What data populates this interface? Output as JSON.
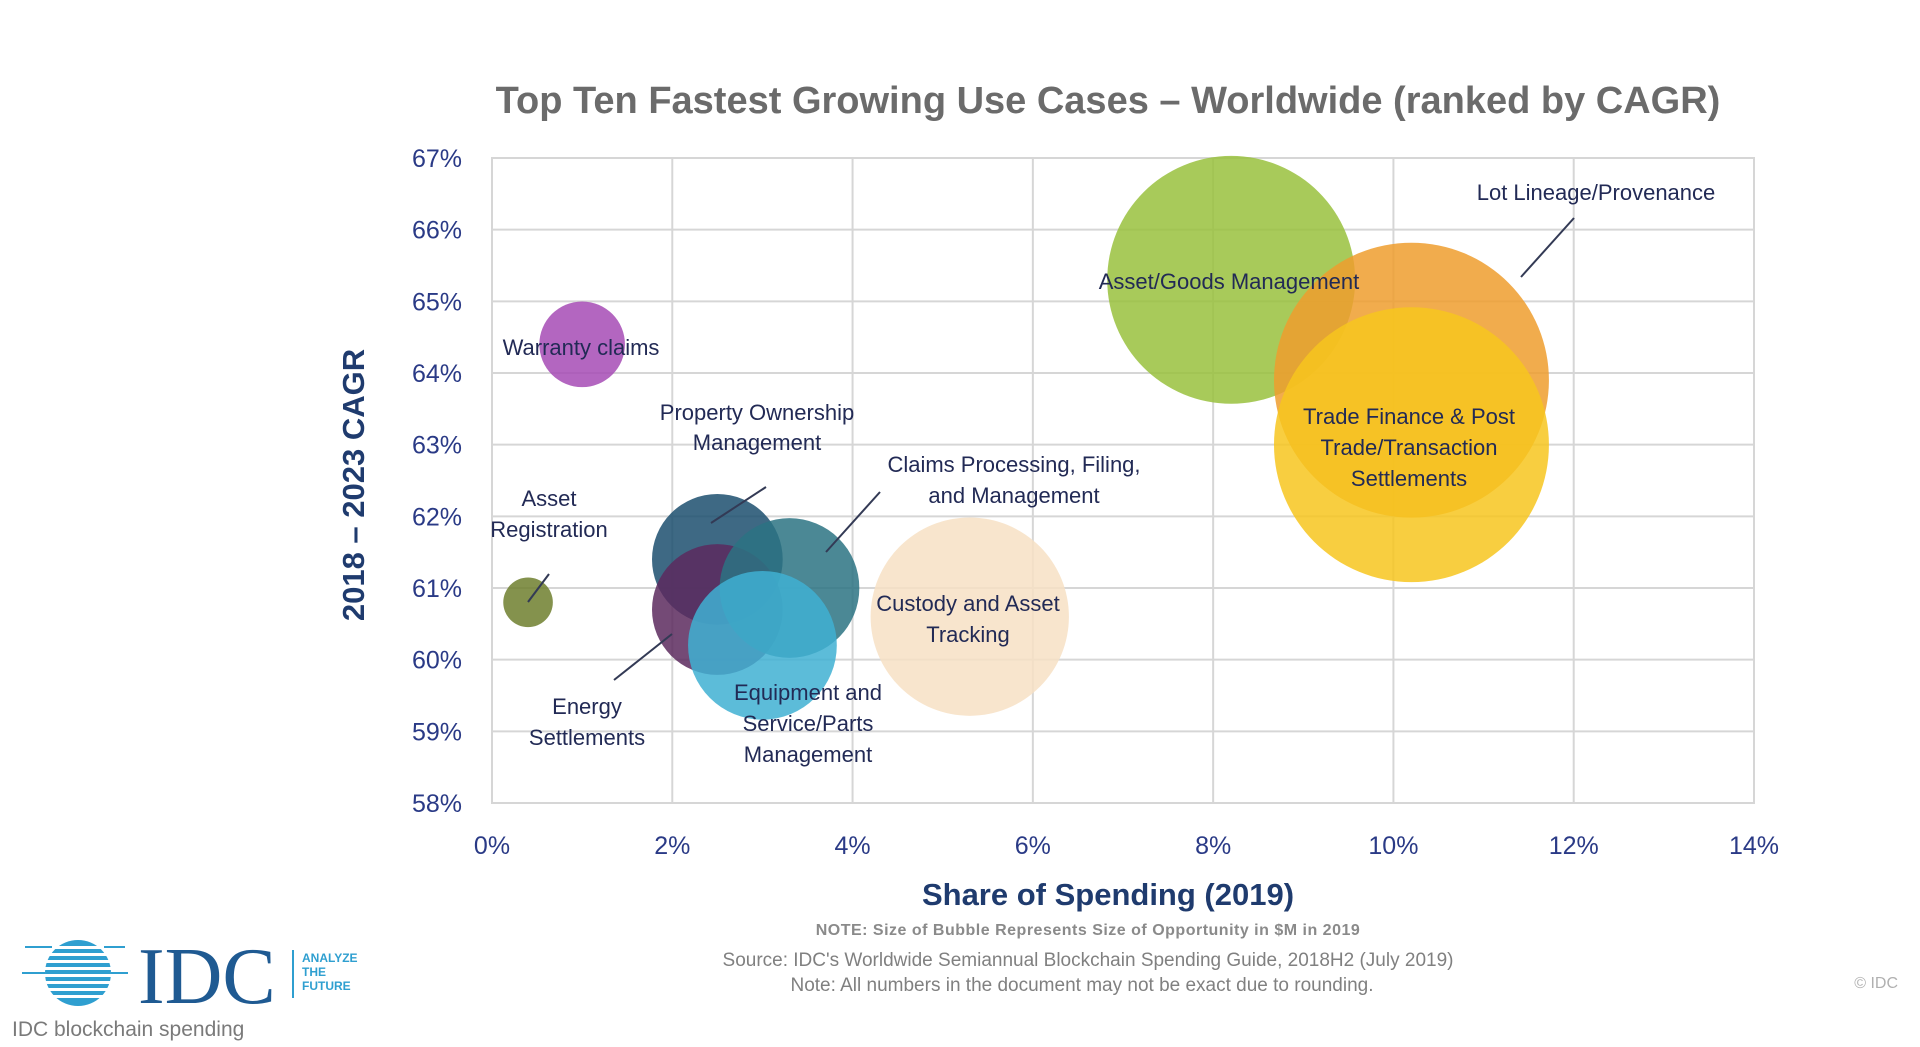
{
  "chart_data": {
    "type": "scatter",
    "subtype": "bubble",
    "title": "Top Ten Fastest Growing Use Cases – Worldwide (ranked by CAGR)",
    "xlabel": "Share of Spending (2019)",
    "ylabel": "2018 – 2023 CAGR",
    "xlim": [
      0,
      14
    ],
    "ylim": [
      58,
      67
    ],
    "x_ticks": [
      "0%",
      "2%",
      "4%",
      "6%",
      "8%",
      "10%",
      "12%",
      "14%"
    ],
    "y_ticks": [
      "58%",
      "59%",
      "60%",
      "61%",
      "62%",
      "63%",
      "64%",
      "65%",
      "66%",
      "67%"
    ],
    "grid": true,
    "series": [
      {
        "name": "Warranty claims",
        "lines": [
          "Warranty claims"
        ],
        "x": 1.0,
        "y": 64.4,
        "size": 0.95,
        "color": "#a64bb5"
      },
      {
        "name": "Asset Registration",
        "lines": [
          "Asset",
          "Registration"
        ],
        "x": 0.4,
        "y": 60.8,
        "size": 0.55,
        "color": "#6f7f2e"
      },
      {
        "name": "Property Ownership Management",
        "lines": [
          "Property Ownership",
          "Management"
        ],
        "x": 2.5,
        "y": 61.4,
        "size": 1.45,
        "color": "#1c4f6e"
      },
      {
        "name": "Energy Settlements",
        "lines": [
          "Energy",
          "Settlements"
        ],
        "x": 2.5,
        "y": 60.7,
        "size": 1.45,
        "color": "#5c2a5e"
      },
      {
        "name": "Claims Processing, Filing, and Management",
        "lines": [
          "Claims Processing, Filing,",
          "and Management"
        ],
        "x": 3.3,
        "y": 61.0,
        "size": 1.55,
        "color": "#2b7383"
      },
      {
        "name": "Equipment and Service/Parts Management",
        "lines": [
          "Equipment and",
          "Service/Parts",
          "Management"
        ],
        "x": 3.0,
        "y": 60.2,
        "size": 1.65,
        "color": "#3fb0d2"
      },
      {
        "name": "Custody and Asset Tracking",
        "lines": [
          "Custody and Asset",
          "Tracking"
        ],
        "x": 5.3,
        "y": 60.6,
        "size": 2.2,
        "color": "#f7e0c4"
      },
      {
        "name": "Asset/Goods Management",
        "lines": [
          "Asset/Goods Management"
        ],
        "x": 8.2,
        "y": 65.3,
        "size": 2.75,
        "color": "#99c13d"
      },
      {
        "name": "Lot Lineage/Provenance",
        "lines": [
          "Lot Lineage/Provenance"
        ],
        "x": 10.2,
        "y": 63.9,
        "size": 3.05,
        "color": "#ef9d2e"
      },
      {
        "name": "Trade Finance & Post Trade/Transaction Settlements",
        "lines": [
          "Trade Finance & Post",
          "Trade/Transaction",
          "Settlements"
        ],
        "x": 10.2,
        "y": 63.0,
        "size": 3.05,
        "color": "#f7c51f"
      }
    ],
    "note": "NOTE: Size of Bubble Represents Size of Opportunity in $M in 2019",
    "source": "Source: IDC's Worldwide Semiannual Blockchain Spending Guide, 2018H2 (July 2019)",
    "rounding_note": "Note: All numbers in the document may not be exact due to rounding."
  },
  "branding": {
    "logo_text": "IDC",
    "tagline": [
      "ANALYZE",
      "THE",
      "FUTURE"
    ],
    "copyright": "© IDC",
    "caption": "IDC blockchain spending"
  }
}
